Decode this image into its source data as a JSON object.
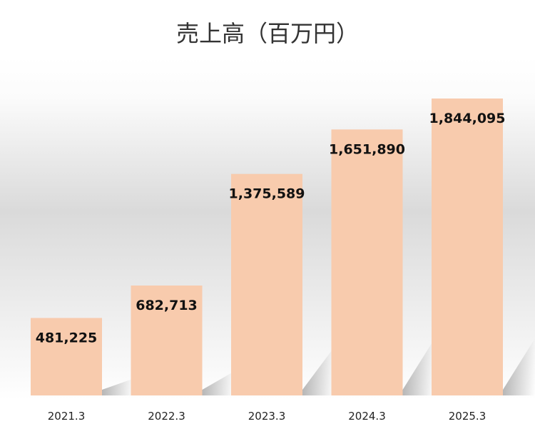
{
  "chart_data": {
    "type": "bar",
    "title": "売上高（百万円）",
    "xlabel": "",
    "ylabel": "",
    "categories": [
      "2021.3",
      "2022.3",
      "2023.3",
      "2024.3",
      "2025.3"
    ],
    "values": [
      481225,
      682713,
      1375589,
      1651890,
      1844095
    ],
    "value_labels": [
      "481,225",
      "682,713",
      "1,375,589",
      "1,651,890",
      "1,844,095"
    ],
    "ylim": [
      0,
      2000000
    ],
    "grid": false,
    "legend": "none",
    "bar_color": "#F8CBAD"
  }
}
